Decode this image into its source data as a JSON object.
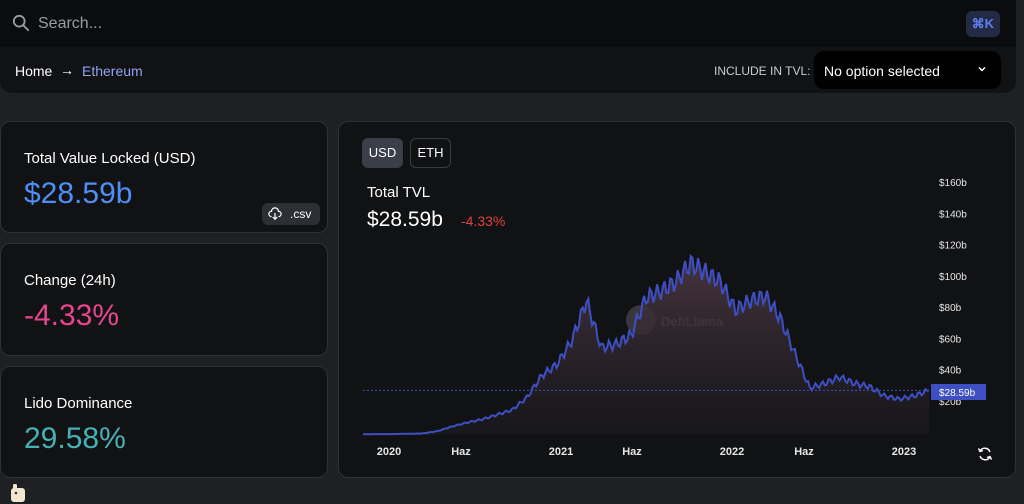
{
  "search": {
    "placeholder": "Search...",
    "shortcut": "⌘K"
  },
  "breadcrumb": {
    "home": "Home",
    "arrow": "→",
    "current": "Ethereum"
  },
  "tvl_filter": {
    "label": "INCLUDE IN TVL:",
    "selected": "No option selected"
  },
  "stats": {
    "tvl": {
      "label": "Total Value Locked (USD)",
      "value": "$28.59b",
      "color": "#4f8ff5",
      "csv_label": ".csv"
    },
    "change": {
      "label": "Change (24h)",
      "value": "-4.33%",
      "color": "#e9448f"
    },
    "dominance": {
      "label": "Lido Dominance",
      "value": "29.58%",
      "color": "#46b1b5"
    }
  },
  "chart_panel": {
    "toggles": [
      "USD",
      "ETH"
    ],
    "active_toggle": "USD",
    "title": "Total TVL",
    "total": "$28.59b",
    "change": "-4.33%",
    "watermark": "DefiLlama",
    "current_price_tag": "$28.59b"
  },
  "chart_data": {
    "type": "area",
    "title": "Total TVL",
    "series": [
      {
        "values": [
          [
            "2019-11",
            0.5
          ],
          [
            "2020-01",
            0.6
          ],
          [
            "2020-03",
            0.6
          ],
          [
            "2020-05",
            0.8
          ],
          [
            "2020-06",
            1.0
          ],
          [
            "2020-07",
            2.5
          ],
          [
            "2020-08",
            5.5
          ],
          [
            "2020-09",
            8.0
          ],
          [
            "2020-10",
            10.0
          ],
          [
            "2020-11",
            13.0
          ],
          [
            "2020-12",
            16.0
          ],
          [
            "2021-01",
            24.0
          ],
          [
            "2021-02",
            38.0
          ],
          [
            "2021-03",
            45.0
          ],
          [
            "2021-04",
            60.0
          ],
          [
            "2021-05",
            86.0
          ],
          [
            "2021-05b",
            56.0
          ],
          [
            "2021-06",
            58.0
          ],
          [
            "2021-07",
            64.0
          ],
          [
            "2021-08",
            88.0
          ],
          [
            "2021-09",
            92.0
          ],
          [
            "2021-10",
            98.0
          ],
          [
            "2021-11",
            110.0
          ],
          [
            "2021-12",
            104.0
          ],
          [
            "2022-01",
            98.0
          ],
          [
            "2022-02",
            80.0
          ],
          [
            "2022-03",
            86.0
          ],
          [
            "2022-04",
            89.0
          ],
          [
            "2022-05",
            75.0
          ],
          [
            "2022-05b",
            52.0
          ],
          [
            "2022-06",
            30.0
          ],
          [
            "2022-07",
            33.0
          ],
          [
            "2022-08",
            37.0
          ],
          [
            "2022-09",
            33.0
          ],
          [
            "2022-10",
            31.0
          ],
          [
            "2022-11",
            25.0
          ],
          [
            "2022-12",
            23.0
          ],
          [
            "2023-01",
            25.0
          ],
          [
            "2023-02",
            28.59
          ]
        ]
      }
    ],
    "x_ticks": [
      "2020",
      "Haz",
      "2021",
      "Haz",
      "2022",
      "Haz",
      "2023"
    ],
    "y_ticks": [
      "$20b",
      "$40b",
      "$60b",
      "$80b",
      "$100b",
      "$120b",
      "$140b",
      "$160b"
    ],
    "ylim": [
      0,
      160
    ],
    "reference_line": 28.59,
    "grid": false,
    "colors": {
      "line": "#3d4fc2",
      "fill": "#3a2d34"
    }
  }
}
